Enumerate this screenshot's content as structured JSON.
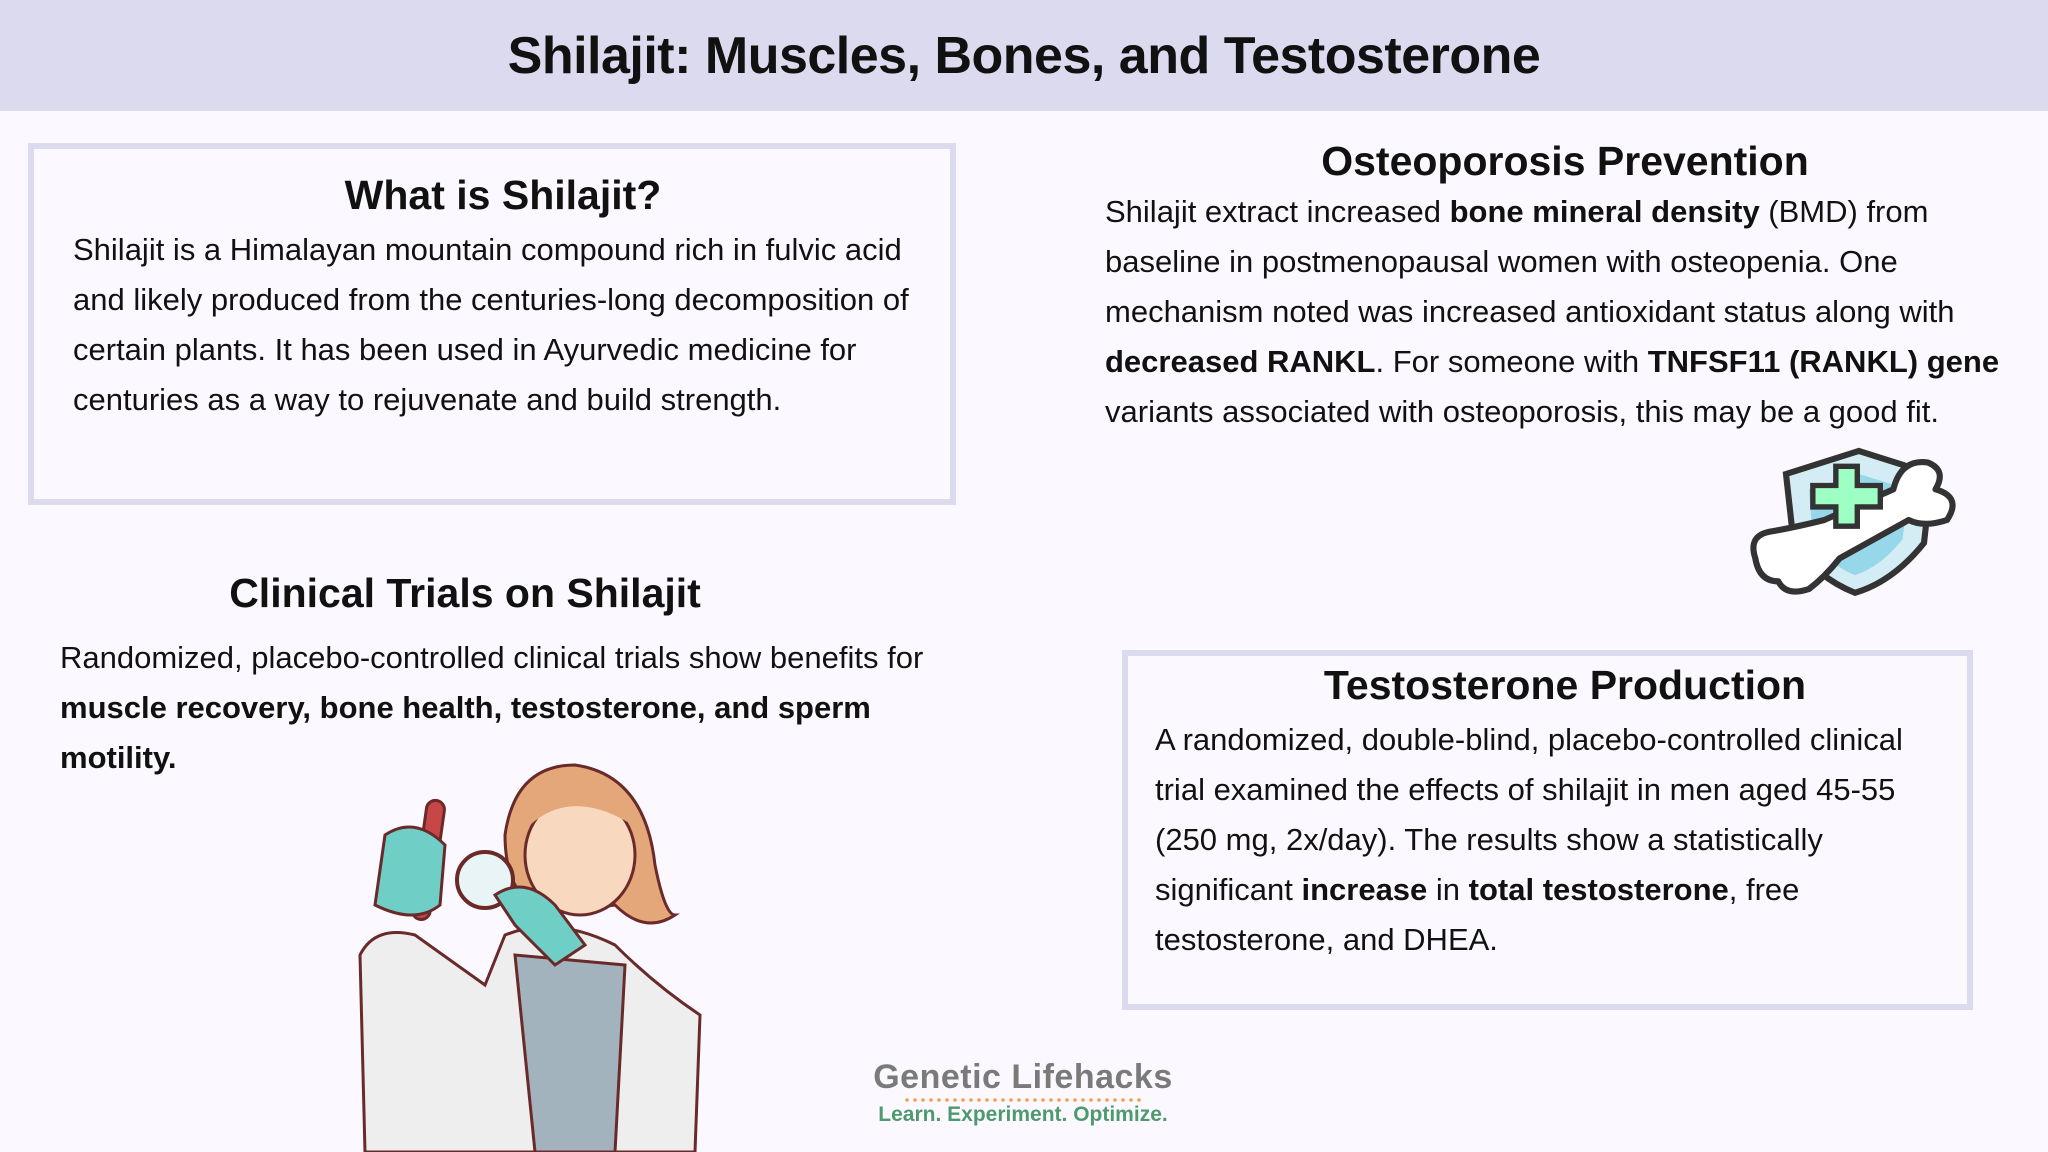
{
  "header": {
    "title": "Shilajit: Muscles, Bones, and Testosterone"
  },
  "what_is": {
    "heading": "What is Shilajit?",
    "body": [
      {
        "t": "Shilajit is a Himalayan mountain compound rich in fulvic acid and likely produced from the centuries-long decomposition of certain plants. It has been used in Ayurvedic medicine for centuries as a way to rejuvenate and build strength."
      }
    ]
  },
  "clinical": {
    "heading": "Clinical Trials on Shilajit",
    "body": [
      {
        "t": "Randomized, placebo-controlled clinical trials show benefits for "
      },
      {
        "t": "muscle recovery, bone health, testosterone, and sperm motility.",
        "b": true
      }
    ]
  },
  "osteo": {
    "heading": "Osteoporosis Prevention",
    "body": [
      {
        "t": "Shilajit extract increased "
      },
      {
        "t": "bone mineral density",
        "b": true
      },
      {
        "t": " (BMD) from baseline in postmenopausal women with osteopenia. One mechanism noted was increased antioxidant status along with "
      },
      {
        "t": "decreased RANKL",
        "b": true
      },
      {
        "t": ".   For someone with "
      },
      {
        "t": "TNFSF11 (RANKL) gene",
        "b": true
      },
      {
        "t": " variants associated with osteoporosis, this may be a good fit."
      }
    ]
  },
  "testo": {
    "heading": "Testosterone Production",
    "body": [
      {
        "t": "A randomized, double-blind, placebo-controlled clinical trial examined the effects of shilajit in men aged 45-55 (250 mg, 2x/day). The results show a statistically significant "
      },
      {
        "t": "increase",
        "b": true
      },
      {
        "t": " in "
      },
      {
        "t": "total testosterone",
        "b": true
      },
      {
        "t": ", free testosterone, and DHEA."
      }
    ]
  },
  "logo": {
    "name": "Genetic Lifehacks",
    "tagline": "Learn. Experiment. Optimize."
  },
  "icons": {
    "bone_shield": "bone-shield-icon",
    "scientist": "scientist-illustration"
  },
  "colors": {
    "header_bg": "#dcdaee",
    "box_border": "#dcdaee",
    "background": "#fbf9ff",
    "logo_gray": "#7a7a7a",
    "logo_green": "#4e9a6e",
    "logo_orange": "#f5a050"
  }
}
